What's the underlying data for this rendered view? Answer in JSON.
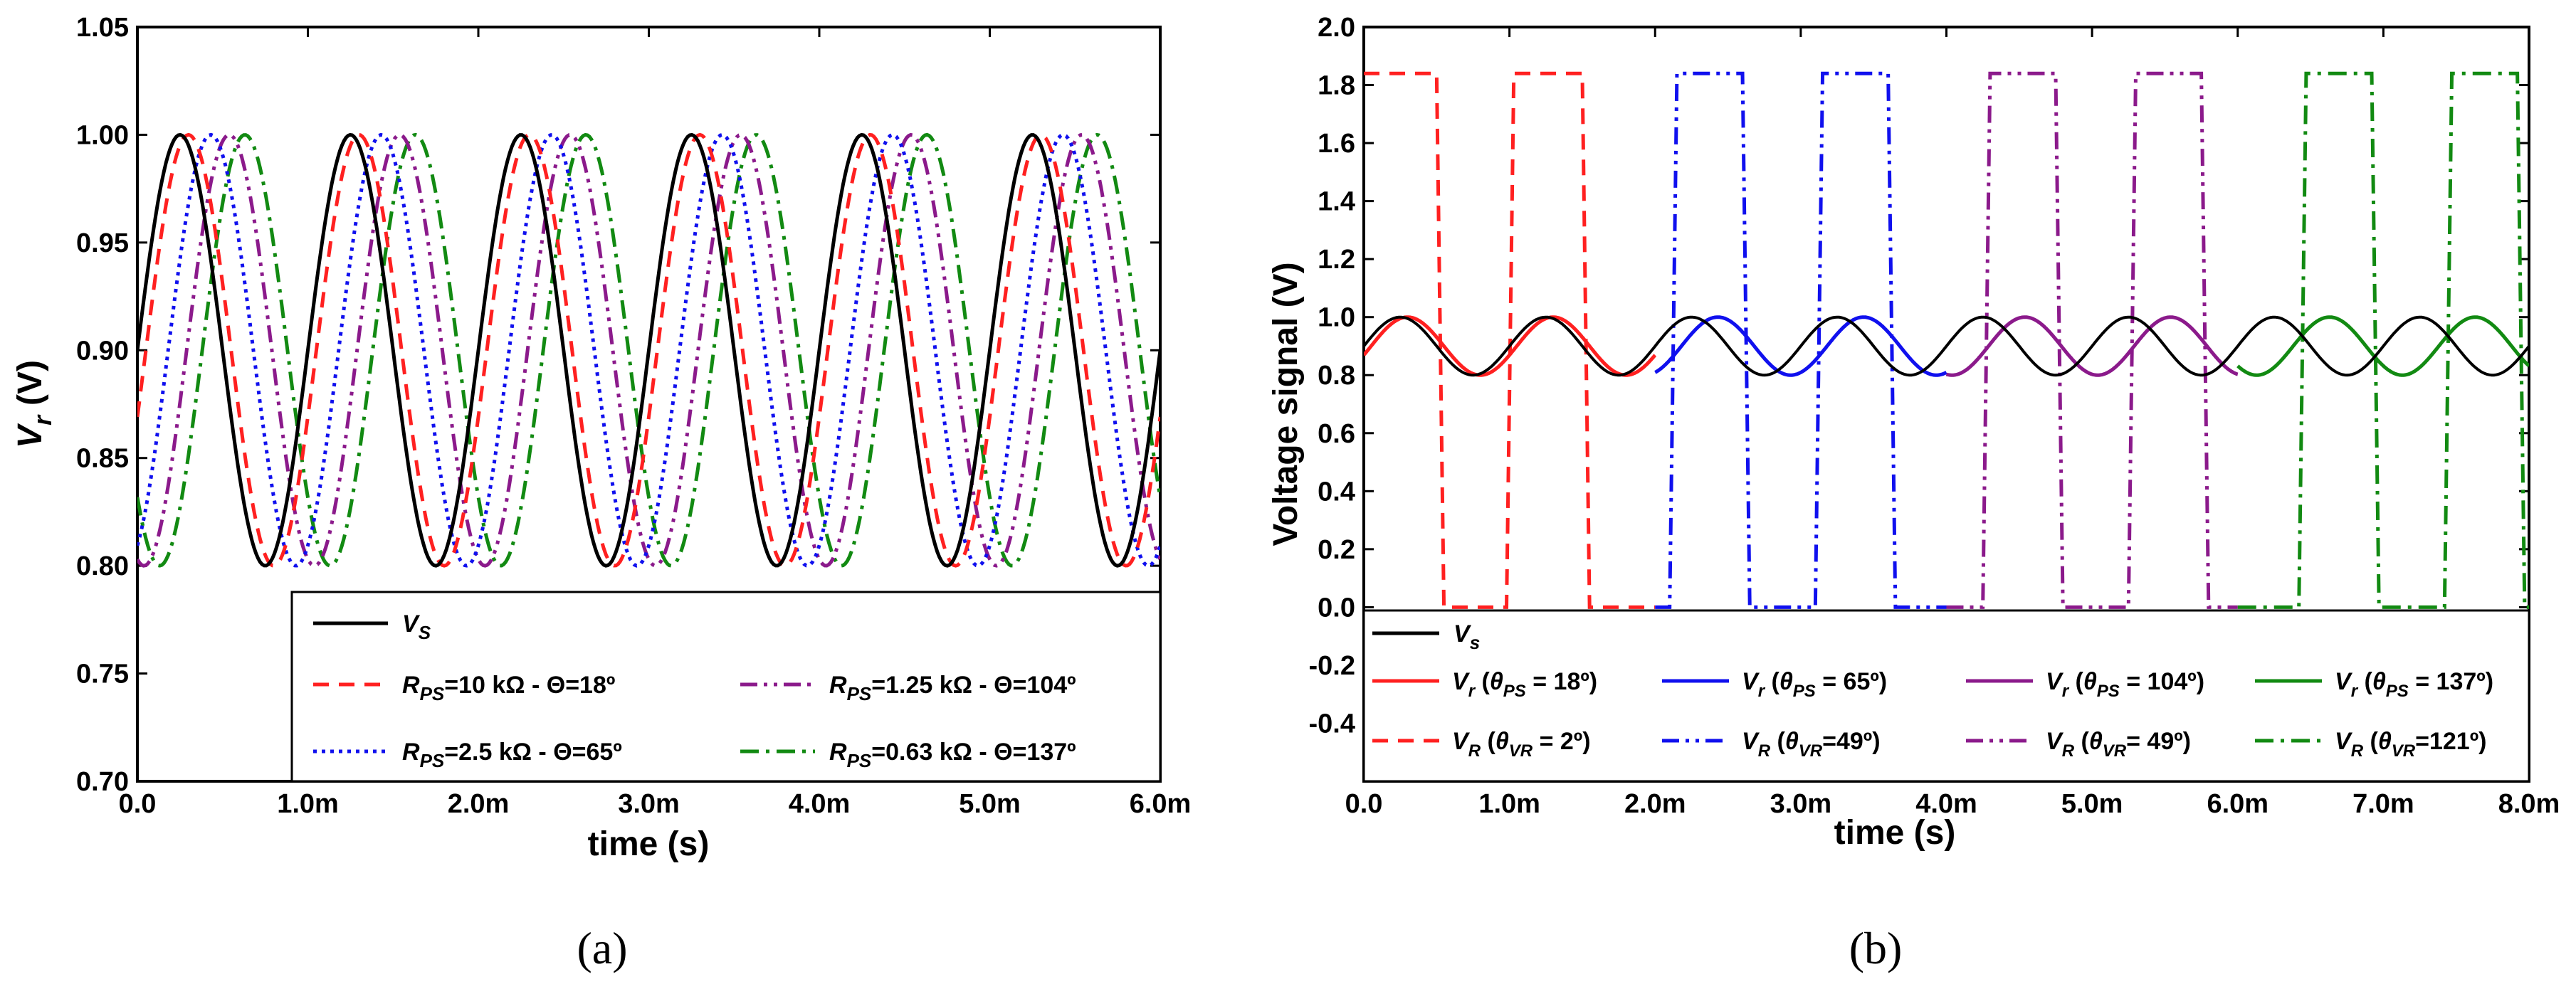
{
  "chart_data": [
    {
      "panel": "a",
      "type": "line",
      "xlabel": "time (s)",
      "ylabel_main": "V",
      "ylabel_sub": "r",
      "ylabel_unit": "(V)",
      "xlim": [
        0,
        6
      ],
      "ylim": [
        0.7,
        1.05
      ],
      "xticks": [
        0,
        1,
        2,
        3,
        4,
        5,
        6
      ],
      "xtick_labels": [
        "0.0",
        "1.0m",
        "2.0m",
        "3.0m",
        "4.0m",
        "5.0m",
        "6.0m"
      ],
      "yticks": [
        0.7,
        0.75,
        0.8,
        0.85,
        0.9,
        0.95,
        1.0,
        1.05
      ],
      "ytick_labels": [
        "0.70",
        "0.75",
        "0.80",
        "0.85",
        "0.90",
        "0.95",
        "1.00",
        "1.05"
      ],
      "legend_position": "bottom-right",
      "series": [
        {
          "name": "Vs",
          "label_main": "V",
          "label_sub": "S",
          "label_rest": "",
          "color": "#000000",
          "dash": "solid",
          "offset": 0.9,
          "amplitude": 0.1,
          "period": 1.0,
          "phase_deg": 0
        },
        {
          "name": "RPS=10 kΩ - Θ=18º",
          "label_main": "R",
          "label_sub": "PS",
          "label_rest": "=10 kΩ - Θ=18º",
          "color": "#ff2020",
          "dash": "dashed",
          "offset": 0.9,
          "amplitude": 0.1,
          "period": 1.0,
          "phase_deg": 18
        },
        {
          "name": "RPS=1.25 kΩ - Θ=104º",
          "label_main": "R",
          "label_sub": "PS",
          "label_rest": "=1.25 kΩ - Θ=104º",
          "color": "#8b1a8b",
          "dash": "dashdotdot",
          "offset": 0.9,
          "amplitude": 0.1,
          "period": 1.0,
          "phase_deg": 104
        },
        {
          "name": "RPS=2.5 kΩ - Θ=65º",
          "label_main": "R",
          "label_sub": "PS",
          "label_rest": "=2.5 kΩ - Θ=65º",
          "color": "#1010ee",
          "dash": "dotted",
          "offset": 0.9,
          "amplitude": 0.1,
          "period": 1.0,
          "phase_deg": 65
        },
        {
          "name": "RPS=0.63 kΩ - Θ=137º",
          "label_main": "R",
          "label_sub": "PS",
          "label_rest": "=0.63 kΩ - Θ=137º",
          "color": "#128a12",
          "dash": "dashdot",
          "offset": 0.9,
          "amplitude": 0.1,
          "period": 1.0,
          "phase_deg": 137
        }
      ]
    },
    {
      "panel": "b",
      "type": "line",
      "xlabel": "time (s)",
      "ylabel": "Voltage signal (V)",
      "xlim": [
        0,
        8
      ],
      "ylim": [
        -0.6,
        2.0
      ],
      "xticks": [
        0,
        1,
        2,
        3,
        4,
        5,
        6,
        7,
        8
      ],
      "xtick_labels": [
        "0.0",
        "1.0m",
        "2.0m",
        "3.0m",
        "4.0m",
        "5.0m",
        "6.0m",
        "7.0m",
        "8.0m"
      ],
      "yticks": [
        -0.4,
        -0.2,
        0.0,
        0.2,
        0.4,
        0.6,
        0.8,
        1.0,
        1.2,
        1.4,
        1.6,
        1.8,
        2.0
      ],
      "ytick_labels": [
        "-0.4",
        "-0.2",
        "0.0",
        "0.2",
        "0.4",
        "0.6",
        "0.8",
        "1.0",
        "1.2",
        "1.4",
        "1.6",
        "1.8",
        "2.0"
      ],
      "legend_position": "bottom",
      "source": {
        "name": "Vs",
        "label_main": "V",
        "label_sub": "s",
        "color": "#000000",
        "dash": "solid",
        "offset": 0.9,
        "amplitude": 0.1,
        "period": 1.0,
        "x_range": [
          0,
          8
        ]
      },
      "vr_series": [
        {
          "name": "Vr (θPS = 18º)",
          "label_main": "V",
          "label_sub": "r",
          "theta_sub": "PS",
          "label_value": " = 18º)",
          "color": "#ff2020",
          "dash": "solid",
          "phase_deg": 18,
          "x_range": [
            0,
            2
          ]
        },
        {
          "name": "Vr (θPS = 65º)",
          "label_main": "V",
          "label_sub": "r",
          "theta_sub": "PS",
          "label_value": " = 65º)",
          "color": "#1010ee",
          "dash": "solid",
          "phase_deg": 65,
          "x_range": [
            2,
            4
          ]
        },
        {
          "name": "Vr (θPS = 104º)",
          "label_main": "V",
          "label_sub": "r",
          "theta_sub": "PS",
          "label_value": " = 104º)",
          "color": "#8b1a8b",
          "dash": "solid",
          "phase_deg": 104,
          "x_range": [
            4,
            6
          ]
        },
        {
          "name": "Vr (θPS = 137º)",
          "label_main": "V",
          "label_sub": "r",
          "theta_sub": "PS",
          "label_value": " = 137º)",
          "color": "#128a12",
          "dash": "solid",
          "phase_deg": 137,
          "x_range": [
            6,
            8
          ]
        }
      ],
      "vR_series": [
        {
          "name": "VR (θVR = 2º)",
          "label_main": "V",
          "label_sub": "R",
          "theta_sub": "VR",
          "label_value": " = 2º)",
          "color": "#ff2020",
          "dash": "dashed",
          "high": 1.84,
          "low": 0.0,
          "high_intervals": [
            [
              0,
              0.5
            ],
            [
              0.98,
              1.5
            ]
          ],
          "x_range": [
            0,
            2
          ]
        },
        {
          "name": "VR (θVR=49º)",
          "label_main": "V",
          "label_sub": "R",
          "theta_sub": "VR",
          "label_value": "=49º)",
          "color": "#1010ee",
          "dash": "dashdotdot",
          "high": 1.84,
          "low": 0.0,
          "high_intervals": [
            [
              2.1,
              2.6
            ],
            [
              3.1,
              3.6
            ]
          ],
          "x_range": [
            2,
            4
          ]
        },
        {
          "name": "VR (θVR= 49º)",
          "label_main": "V",
          "label_sub": "R",
          "theta_sub": "VR",
          "label_value": "= 49º)",
          "color": "#8b1a8b",
          "dash": "dashdotdot",
          "high": 1.84,
          "low": 0.0,
          "high_intervals": [
            [
              4.25,
              4.75
            ],
            [
              5.25,
              5.75
            ]
          ],
          "x_range": [
            4,
            6
          ]
        },
        {
          "name": "VR (θVR=121º)",
          "label_main": "V",
          "label_sub": "R",
          "theta_sub": "VR",
          "label_value": "=121º)",
          "color": "#128a12",
          "dash": "dashdot",
          "high": 1.84,
          "low": 0.0,
          "high_intervals": [
            [
              6.42,
              6.92
            ],
            [
              7.42,
              7.92
            ]
          ],
          "x_range": [
            6,
            8
          ]
        }
      ]
    }
  ],
  "captions": {
    "a": "(a)",
    "b": "(b)"
  }
}
